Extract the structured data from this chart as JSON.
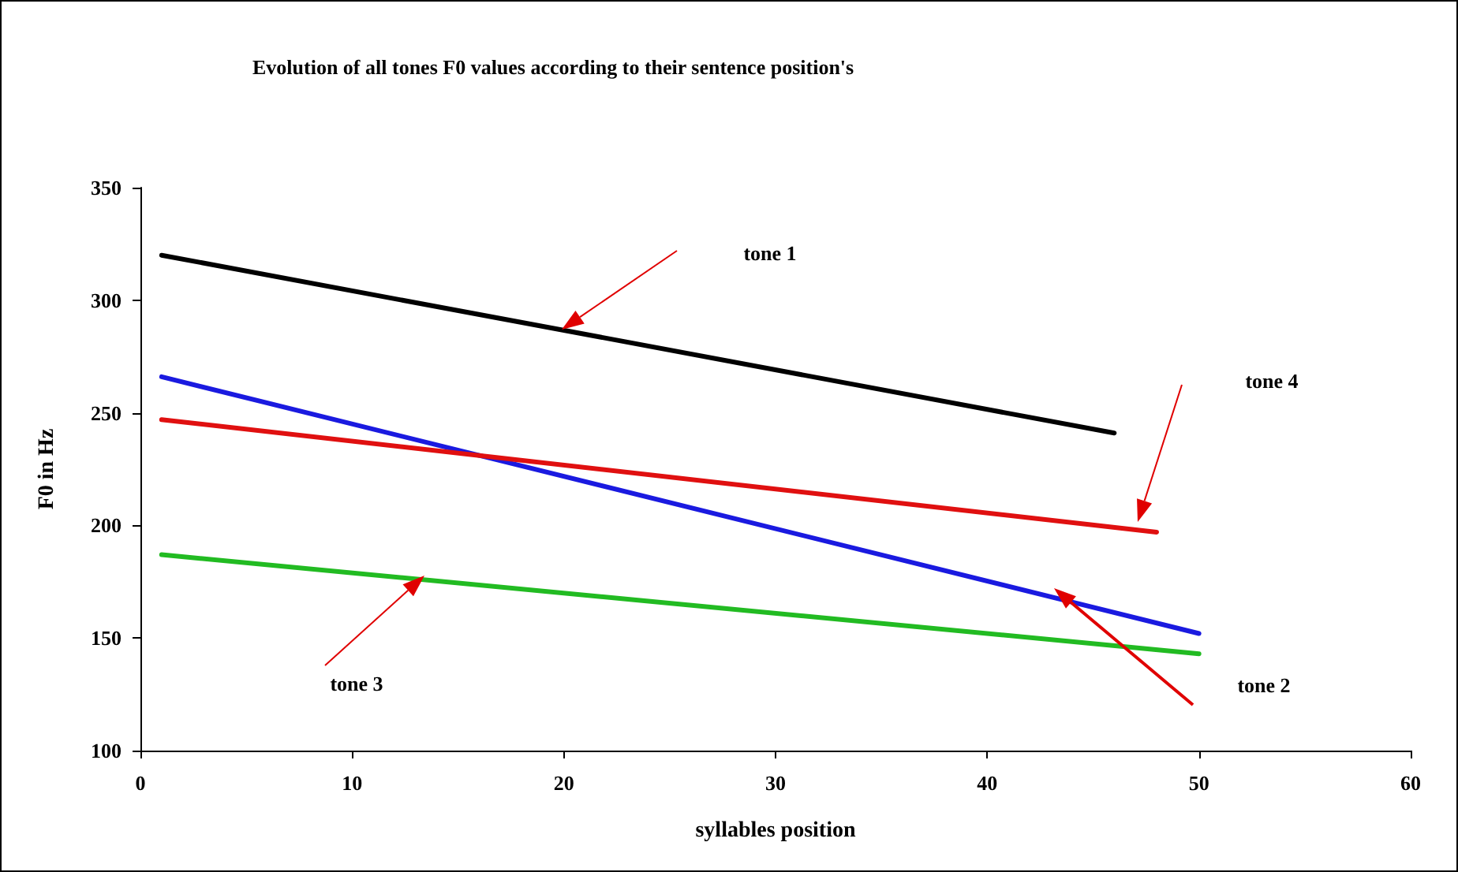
{
  "chart_data": {
    "type": "line",
    "title": "Evolution of all tones F0 values according to their sentence position's",
    "xlabel": "syllables position",
    "ylabel": "F0 in Hz",
    "series": [
      {
        "color": "#000000",
        "x": [
          1,
          46
        ],
        "values": [
          320,
          241
        ]
      },
      {
        "color": "#1a1ae0",
        "x": [
          1,
          50
        ],
        "values": [
          266,
          152
        ]
      },
      {
        "color": "#22bb22",
        "x": [
          1,
          50
        ],
        "values": [
          187,
          143
        ]
      },
      {
        "color": "#e01010",
        "x": [
          1,
          48
        ],
        "values": [
          247,
          197
        ]
      }
    ],
    "annotations": [
      "tone 1",
      "tone 4",
      "tone 2",
      "tone 3"
    ],
    "xlim": [
      0,
      60
    ],
    "xticks": [
      0,
      10,
      20,
      30,
      40,
      50,
      60
    ],
    "ylim": [
      100,
      350
    ],
    "yticks": [
      100,
      150,
      200,
      250,
      300,
      350
    ],
    "grid": false,
    "marker": "none",
    "line_style": "solid"
  }
}
